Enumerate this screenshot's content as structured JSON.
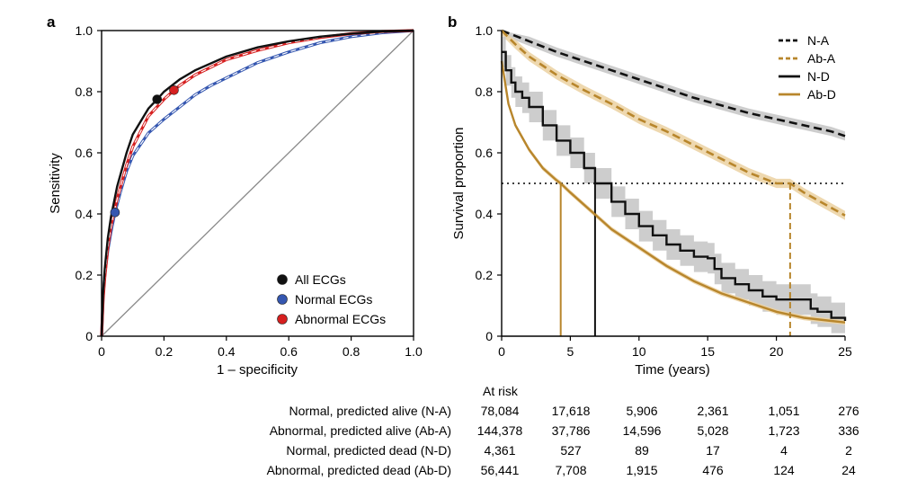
{
  "colors": {
    "all": "#111111",
    "normal": "#3557b0",
    "abnormal": "#d62020",
    "alive_normal": "#111111",
    "gold": "#b8862c",
    "band": "#c8c8c8",
    "gold_band": "#ecd4a6",
    "diag": "#8a8a8a"
  },
  "chart_data": [
    {
      "panel": "a",
      "type": "line",
      "xlabel": "1 – specificity",
      "ylabel": "Sensitivity",
      "xlim": [
        0,
        1
      ],
      "ylim": [
        0,
        1
      ],
      "xticks": [
        "0",
        "0.2",
        "0.4",
        "0.6",
        "0.8",
        "1.0"
      ],
      "yticks": [
        "0",
        "0.2",
        "0.4",
        "0.6",
        "0.8",
        "1.0"
      ],
      "legend_position": "bottom-right",
      "series": [
        {
          "name": "All ECGs",
          "color_key": "all",
          "style": "solid",
          "x": [
            0,
            0.005,
            0.01,
            0.02,
            0.03,
            0.05,
            0.08,
            0.1,
            0.15,
            0.178,
            0.2,
            0.25,
            0.3,
            0.4,
            0.5,
            0.6,
            0.7,
            0.8,
            0.9,
            1.0
          ],
          "y": [
            0,
            0.14,
            0.22,
            0.32,
            0.39,
            0.49,
            0.6,
            0.66,
            0.745,
            0.775,
            0.8,
            0.84,
            0.87,
            0.915,
            0.945,
            0.965,
            0.98,
            0.99,
            0.997,
            1.0
          ],
          "marker": [
            0.178,
            0.775
          ]
        },
        {
          "name": "Normal ECGs",
          "color_key": "normal",
          "style": "dashed",
          "x": [
            0,
            0.005,
            0.01,
            0.02,
            0.03,
            0.043,
            0.06,
            0.08,
            0.1,
            0.15,
            0.2,
            0.25,
            0.3,
            0.35,
            0.4,
            0.5,
            0.6,
            0.7,
            0.8,
            0.9,
            1.0
          ],
          "y": [
            0,
            0.13,
            0.2,
            0.28,
            0.34,
            0.405,
            0.47,
            0.54,
            0.59,
            0.665,
            0.71,
            0.75,
            0.79,
            0.82,
            0.845,
            0.895,
            0.93,
            0.96,
            0.98,
            0.993,
            1.0
          ],
          "marker": [
            0.043,
            0.405
          ]
        },
        {
          "name": "Abnormal ECGs",
          "color_key": "abnormal",
          "style": "dashed",
          "x": [
            0,
            0.005,
            0.01,
            0.02,
            0.03,
            0.05,
            0.08,
            0.1,
            0.15,
            0.2,
            0.232,
            0.25,
            0.3,
            0.4,
            0.5,
            0.6,
            0.7,
            0.8,
            0.9,
            1.0
          ],
          "y": [
            0,
            0.12,
            0.19,
            0.29,
            0.36,
            0.45,
            0.56,
            0.62,
            0.72,
            0.775,
            0.805,
            0.82,
            0.855,
            0.905,
            0.935,
            0.96,
            0.977,
            0.99,
            0.997,
            1.0
          ],
          "marker": [
            0.232,
            0.805
          ]
        }
      ]
    },
    {
      "panel": "b",
      "type": "line",
      "xlabel": "Time (years)",
      "ylabel": "Survival proportion",
      "xlim": [
        0,
        25
      ],
      "ylim": [
        0,
        1
      ],
      "xticks": [
        "0",
        "5",
        "10",
        "15",
        "20",
        "25"
      ],
      "yticks": [
        "0",
        "0.2",
        "0.4",
        "0.6",
        "0.8",
        "1.0"
      ],
      "legend_position": "top-right",
      "median_line": 0.5,
      "series": [
        {
          "name": "N-A",
          "color_key": "alive_normal",
          "style": "dashed",
          "x": [
            0,
            2,
            4,
            6,
            8,
            10,
            12,
            14,
            16,
            18,
            20,
            22,
            24,
            25
          ],
          "y": [
            1.0,
            0.965,
            0.93,
            0.9,
            0.87,
            0.84,
            0.81,
            0.78,
            0.755,
            0.73,
            0.71,
            0.69,
            0.67,
            0.655
          ],
          "band": 0.015,
          "band_color_key": "band"
        },
        {
          "name": "Ab-A",
          "color_key": "gold",
          "style": "dashed",
          "x": [
            0,
            1,
            2,
            4,
            6,
            8,
            10,
            12,
            14,
            16,
            18,
            20,
            21,
            22,
            24,
            25
          ],
          "y": [
            1.0,
            0.955,
            0.915,
            0.855,
            0.805,
            0.76,
            0.71,
            0.67,
            0.625,
            0.58,
            0.535,
            0.5,
            0.5,
            0.47,
            0.42,
            0.395
          ],
          "band": 0.015,
          "band_color_key": "gold_band",
          "median_x": 21.0
        },
        {
          "name": "N-D",
          "color_key": "all",
          "style": "solid",
          "step": true,
          "x": [
            0,
            0.3,
            0.7,
            1,
            1.5,
            2,
            3,
            4,
            5,
            6,
            6.8,
            8,
            9,
            10,
            11,
            12,
            13,
            14,
            15,
            15.5,
            16,
            17,
            18,
            19,
            20,
            21,
            22,
            22.5,
            23,
            24,
            25
          ],
          "y": [
            0.93,
            0.87,
            0.83,
            0.8,
            0.78,
            0.75,
            0.69,
            0.64,
            0.6,
            0.55,
            0.5,
            0.44,
            0.4,
            0.36,
            0.33,
            0.3,
            0.28,
            0.26,
            0.255,
            0.22,
            0.19,
            0.17,
            0.15,
            0.13,
            0.12,
            0.12,
            0.12,
            0.09,
            0.08,
            0.06,
            0.05
          ],
          "band": 0.05,
          "band_color_key": "band",
          "median_x": 6.8
        },
        {
          "name": "Ab-D",
          "color_key": "gold",
          "style": "solid",
          "x": [
            0,
            0.5,
            1,
            2,
            3,
            4,
            4.3,
            5,
            6,
            7,
            8,
            10,
            12,
            14,
            16,
            18,
            20,
            22,
            24,
            25
          ],
          "y": [
            0.9,
            0.76,
            0.69,
            0.61,
            0.55,
            0.51,
            0.5,
            0.47,
            0.43,
            0.39,
            0.35,
            0.29,
            0.23,
            0.18,
            0.14,
            0.11,
            0.08,
            0.06,
            0.05,
            0.045
          ],
          "band": 0.008,
          "band_color_key": "gold_band",
          "median_x": 4.3
        }
      ]
    }
  ],
  "panel_a": {
    "letter": "a",
    "xlabel": "1 – specificity",
    "ylabel": "Sensitivity",
    "legend": [
      {
        "label": "All ECGs",
        "color_key": "all"
      },
      {
        "label": "Normal ECGs",
        "color_key": "normal"
      },
      {
        "label": "Abnormal ECGs",
        "color_key": "abnormal"
      }
    ]
  },
  "panel_b": {
    "letter": "b",
    "xlabel": "Time (years)",
    "ylabel": "Survival proportion",
    "legend": [
      {
        "label": "N-A",
        "color_key": "alive_normal",
        "style": "dashed"
      },
      {
        "label": "Ab-A",
        "color_key": "gold",
        "style": "dashed"
      },
      {
        "label": "N-D",
        "color_key": "all",
        "style": "solid"
      },
      {
        "label": "Ab-D",
        "color_key": "gold",
        "style": "solid"
      }
    ]
  },
  "at_risk": {
    "header": "At risk",
    "rows": [
      {
        "label": "Normal, predicted alive (N-A)",
        "values": [
          "78,084",
          "17,618",
          "5,906",
          "2,361",
          "1,051",
          "276"
        ]
      },
      {
        "label": "Abnormal, predicted alive (Ab-A)",
        "values": [
          "144,378",
          "37,786",
          "14,596",
          "5,028",
          "1,723",
          "336"
        ]
      },
      {
        "label": "Normal, predicted dead (N-D)",
        "values": [
          "4,361",
          "527",
          "89",
          "17",
          "4",
          "2"
        ]
      },
      {
        "label": "Abnormal, predicted dead (Ab-D)",
        "values": [
          "56,441",
          "7,708",
          "1,915",
          "476",
          "124",
          "24"
        ]
      }
    ]
  }
}
